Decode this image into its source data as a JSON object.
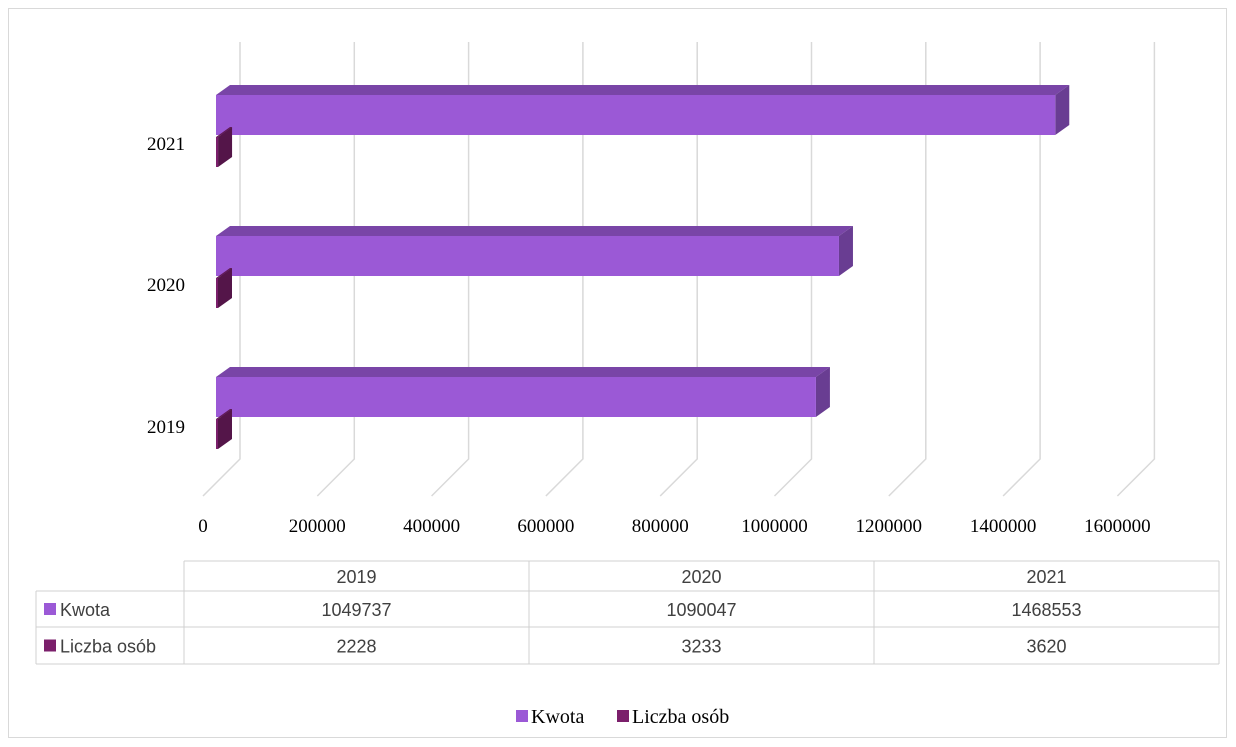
{
  "chart_data": {
    "type": "bar",
    "orientation": "horizontal",
    "style": "3d",
    "categories": [
      "2019",
      "2020",
      "2021"
    ],
    "series": [
      {
        "name": "Kwota",
        "values": [
          1049737,
          1090047,
          1468553
        ],
        "color": "#9b59d6"
      },
      {
        "name": "Liczba osób",
        "values": [
          2228,
          3233,
          3620
        ],
        "color": "#7b1f6b"
      }
    ],
    "xlim": [
      0,
      1600000
    ],
    "x_ticks": [
      "0",
      "200000",
      "400000",
      "600000",
      "800000",
      "1000000",
      "1200000",
      "1400000",
      "1600000"
    ],
    "grid": true,
    "legend": "bottom",
    "data_table": true
  }
}
